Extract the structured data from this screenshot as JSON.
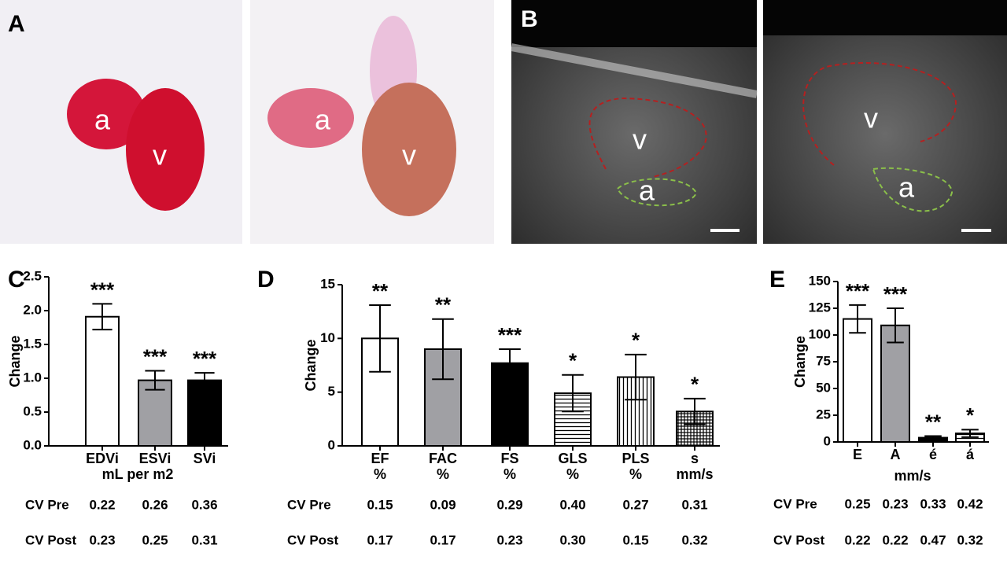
{
  "panel_labels": [
    "A",
    "B",
    "C",
    "D",
    "E"
  ],
  "photo_labels": [
    [
      "a",
      "v"
    ],
    [
      "a",
      "v"
    ],
    [
      "v",
      "a"
    ],
    [
      "v",
      "a"
    ]
  ],
  "chart_data": [
    {
      "type": "bar",
      "y_label": "Change",
      "x_label": "mL per m2",
      "categories": [
        "EDVi",
        "ESVi",
        "SVi"
      ],
      "values": [
        1.91,
        0.97,
        0.97
      ],
      "errors": [
        0.19,
        0.14,
        0.11
      ],
      "fills": [
        "#ffffff",
        "#a0a0a4",
        "#000000"
      ],
      "significance": [
        "***",
        "***",
        "***"
      ],
      "ylim": [
        0,
        2.5
      ],
      "yticks": [
        {
          "value": 0,
          "label": "0.0"
        },
        0.5,
        {
          "value": 1,
          "label": "1.0"
        },
        1.5,
        {
          "value": 2,
          "label": "2.0"
        },
        2.5
      ],
      "cv_row_labels": [
        "CV Pre",
        "CV Post"
      ],
      "cv_pre": [
        "0.22",
        "0.26",
        "0.36"
      ],
      "cv_post": [
        "0.23",
        "0.25",
        "0.31"
      ]
    },
    {
      "type": "bar",
      "y_label": "Change",
      "categories": [
        "EF",
        "FAC",
        "FS",
        "GLS",
        "PLS",
        "s"
      ],
      "units": [
        "%",
        "%",
        "%",
        "%",
        "%",
        "mm/s"
      ],
      "values": [
        10.0,
        9.0,
        7.7,
        4.9,
        6.4,
        3.2
      ],
      "errors": [
        3.1,
        2.8,
        1.3,
        1.7,
        2.1,
        1.2
      ],
      "fills": [
        "#ffffff",
        "#a0a0a4",
        "#000000",
        "horizontal",
        "vertical",
        "grid"
      ],
      "significance": [
        "**",
        "**",
        "***",
        "*",
        "*",
        "*"
      ],
      "ylim": [
        0,
        15
      ],
      "yticks": [
        0,
        5,
        10,
        15
      ],
      "cv_row_labels": [
        "CV Pre",
        "CV Post"
      ],
      "cv_pre": [
        "0.15",
        "0.09",
        "0.29",
        "0.40",
        "0.27",
        "0.31"
      ],
      "cv_post": [
        "0.17",
        "0.17",
        "0.23",
        "0.30",
        "0.15",
        "0.32"
      ]
    },
    {
      "type": "bar",
      "y_label": "Change",
      "x_label": "mm/s",
      "categories": [
        "E",
        "A",
        "é",
        "á"
      ],
      "values": [
        115,
        109,
        4,
        8
      ],
      "errors": [
        13,
        16,
        1.5,
        3.5
      ],
      "fills": [
        "#ffffff",
        "#a0a0a4",
        "#000000",
        "horizontal"
      ],
      "significance": [
        "***",
        "***",
        "**",
        "*"
      ],
      "ylim": [
        0,
        150
      ],
      "yticks": [
        0,
        25,
        50,
        75,
        100,
        125,
        150
      ],
      "cv_row_labels": [
        "CV Pre",
        "CV Post"
      ],
      "cv_pre": [
        "0.25",
        "0.23",
        "0.33",
        "0.42"
      ],
      "cv_post": [
        "0.22",
        "0.22",
        "0.47",
        "0.32"
      ]
    }
  ]
}
